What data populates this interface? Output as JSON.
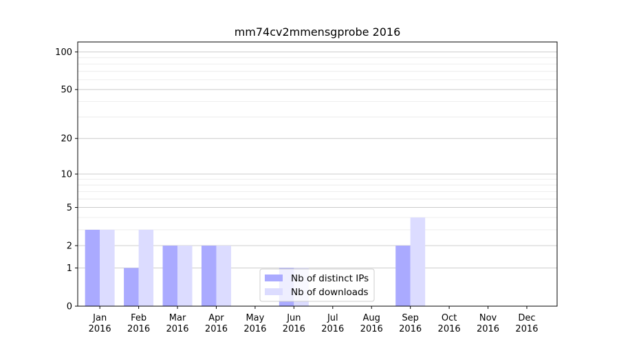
{
  "chart_data": {
    "type": "bar",
    "title": "mm74cv2mmensgprobe 2016",
    "xlabel": "",
    "ylabel": "",
    "y_scale": "log1p",
    "ylim": [
      0,
      120
    ],
    "yticks": [
      0,
      1,
      2,
      5,
      10,
      20,
      50,
      100
    ],
    "categories": [
      [
        "Jan",
        "2016"
      ],
      [
        "Feb",
        "2016"
      ],
      [
        "Mar",
        "2016"
      ],
      [
        "Apr",
        "2016"
      ],
      [
        "May",
        "2016"
      ],
      [
        "Jun",
        "2016"
      ],
      [
        "Jul",
        "2016"
      ],
      [
        "Aug",
        "2016"
      ],
      [
        "Sep",
        "2016"
      ],
      [
        "Oct",
        "2016"
      ],
      [
        "Nov",
        "2016"
      ],
      [
        "Dec",
        "2016"
      ]
    ],
    "series": [
      {
        "name": "Nb of distinct IPs",
        "color": "#aaaaff",
        "values": [
          3,
          1,
          2,
          2,
          0,
          1,
          0,
          0,
          2,
          0,
          0,
          0
        ]
      },
      {
        "name": "Nb of downloads",
        "color": "#dcdcff",
        "values": [
          3,
          3,
          2,
          2,
          0,
          1,
          0,
          0,
          4,
          0,
          0,
          0
        ]
      }
    ],
    "grid": true,
    "legend": "lower-center"
  }
}
